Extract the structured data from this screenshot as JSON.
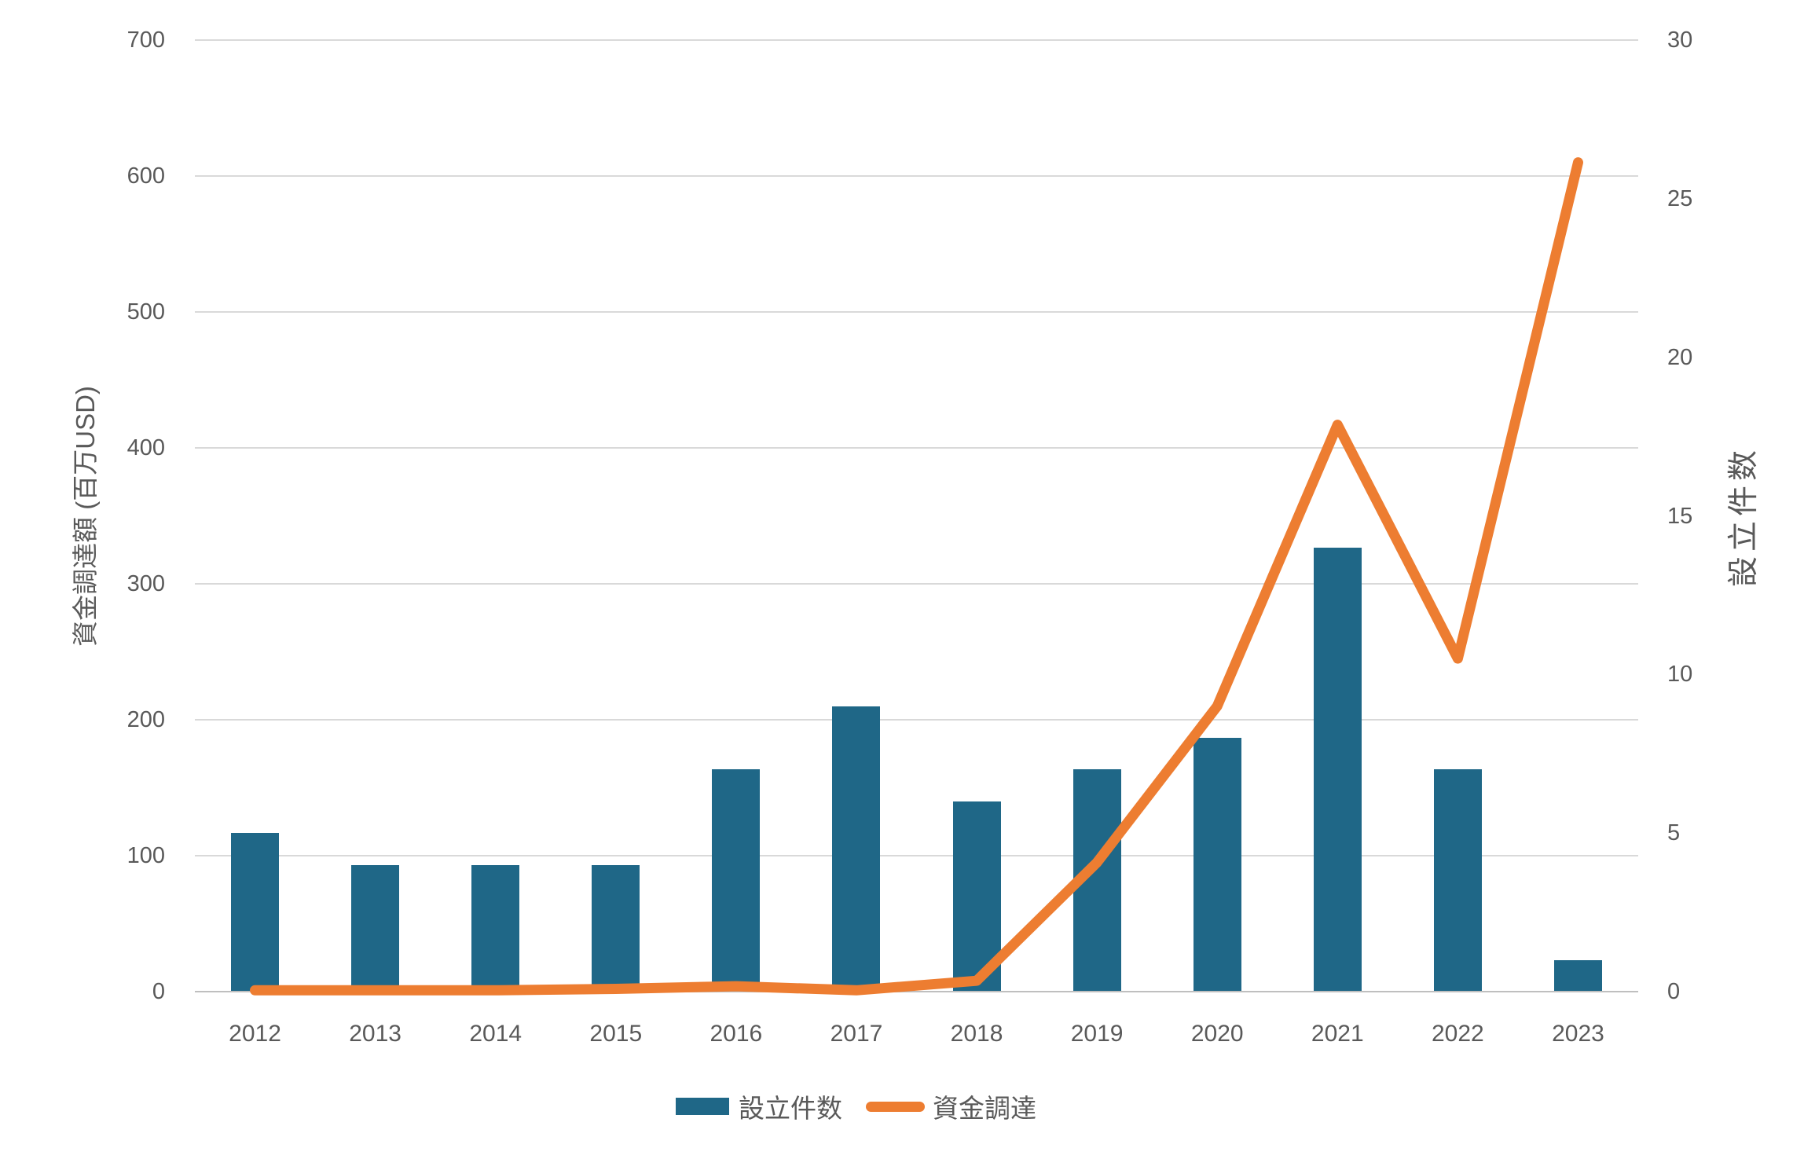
{
  "chart_data": {
    "type": "combo",
    "categories": [
      "2012",
      "2013",
      "2014",
      "2015",
      "2016",
      "2017",
      "2018",
      "2019",
      "2020",
      "2021",
      "2022",
      "2023"
    ],
    "series": [
      {
        "name": "設立件数",
        "type": "bar",
        "axis": "right",
        "color": "#1f6787",
        "values": [
          5,
          4,
          4,
          4,
          7,
          9,
          6,
          7,
          8,
          14,
          7,
          1
        ]
      },
      {
        "name": "資金調達",
        "type": "line",
        "axis": "left",
        "color": "#ed7d31",
        "values": [
          1,
          1,
          1,
          2,
          4,
          1,
          8,
          95,
          210,
          417,
          245,
          610
        ]
      }
    ],
    "left_axis": {
      "title": "資金調達額 (百万USD)",
      "min": 0,
      "max": 700,
      "step": 100,
      "ticks": [
        700,
        600,
        500,
        400,
        300,
        200,
        100,
        0
      ]
    },
    "right_axis": {
      "title": "設立件数",
      "min": 0,
      "max": 30,
      "step": 5,
      "ticks": [
        30,
        25,
        20,
        15,
        10,
        5,
        0
      ]
    },
    "legend": {
      "position": "bottom",
      "entries": [
        {
          "label": "設立件数",
          "marker": "bar",
          "color": "#1f6787"
        },
        {
          "label": "資金調達",
          "marker": "line",
          "color": "#ed7d31"
        }
      ]
    },
    "grid": true,
    "colors": {
      "bar": "#1f6787",
      "line": "#ed7d31",
      "text": "#595959",
      "gridline": "#d9d9d9",
      "baseline": "#bfbfbf",
      "background": "#ffffff"
    }
  }
}
